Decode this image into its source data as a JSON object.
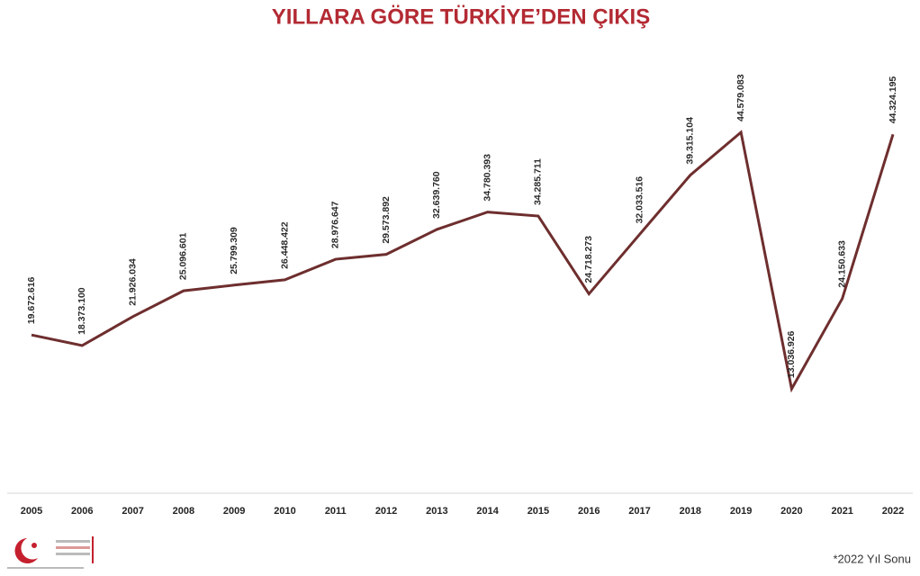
{
  "chart_data": {
    "type": "line",
    "title": "YILLARA GÖRE TÜRKİYE’DEN ÇIKIŞ",
    "note": "*2022 Yıl Sonu",
    "categories": [
      "2005",
      "2006",
      "2007",
      "2008",
      "2009",
      "2010",
      "2011",
      "2012",
      "2013",
      "2014",
      "2015",
      "2016",
      "2017",
      "2018",
      "2019",
      "2020",
      "2021",
      "2022"
    ],
    "series": [
      {
        "color": "#6e2e2e",
        "values": [
          19672616,
          18373100,
          21926034,
          25096601,
          25799309,
          26448422,
          28976647,
          29573892,
          32639760,
          34780393,
          34285711,
          24718273,
          32033516,
          39315104,
          44579083,
          13036926,
          24150633,
          44324195
        ],
        "value_labels": [
          "19.672.616",
          "18.373.100",
          "21.926.034",
          "25.096.601",
          "25.799.309",
          "26.448.422",
          "28.976.647",
          "29.573.892",
          "32.639.760",
          "34.780.393",
          "34.285.711",
          "24.718.273",
          "32.033.516",
          "39.315.104",
          "44.579.083",
          "13.036.926",
          "24.150.633",
          "44.324.195"
        ]
      }
    ],
    "ylim": [
      0,
      50000000
    ]
  }
}
